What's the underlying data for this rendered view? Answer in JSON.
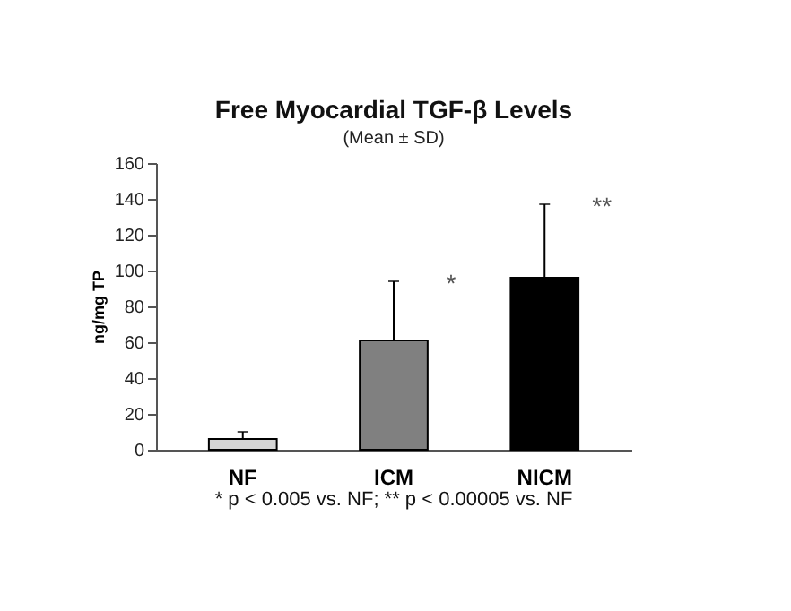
{
  "chart_data": {
    "type": "bar",
    "title": "Free Myocardial TGF-β Levels",
    "subtitle": "(Mean ± SD)",
    "ylabel": "ng/mg TP",
    "categories": [
      "NF",
      "ICM",
      "NICM"
    ],
    "values": [
      6,
      61,
      96
    ],
    "colors": [
      "#d4d4d4",
      "#808080",
      "#000000"
    ],
    "errors": [
      [
        6,
        10
      ],
      [
        61,
        94
      ],
      [
        96,
        137
      ]
    ],
    "ylim": [
      0,
      160
    ],
    "yticks": [
      0,
      20,
      40,
      60,
      80,
      100,
      120,
      140,
      160
    ],
    "grid": false,
    "annotations": [
      {
        "text": "*",
        "x": "ICM",
        "y": 94
      },
      {
        "text": "**",
        "x": "NICM",
        "y": 137
      },
      "* p < 0.005 vs. NF;  ** p < 0.00005 vs. NF"
    ]
  }
}
